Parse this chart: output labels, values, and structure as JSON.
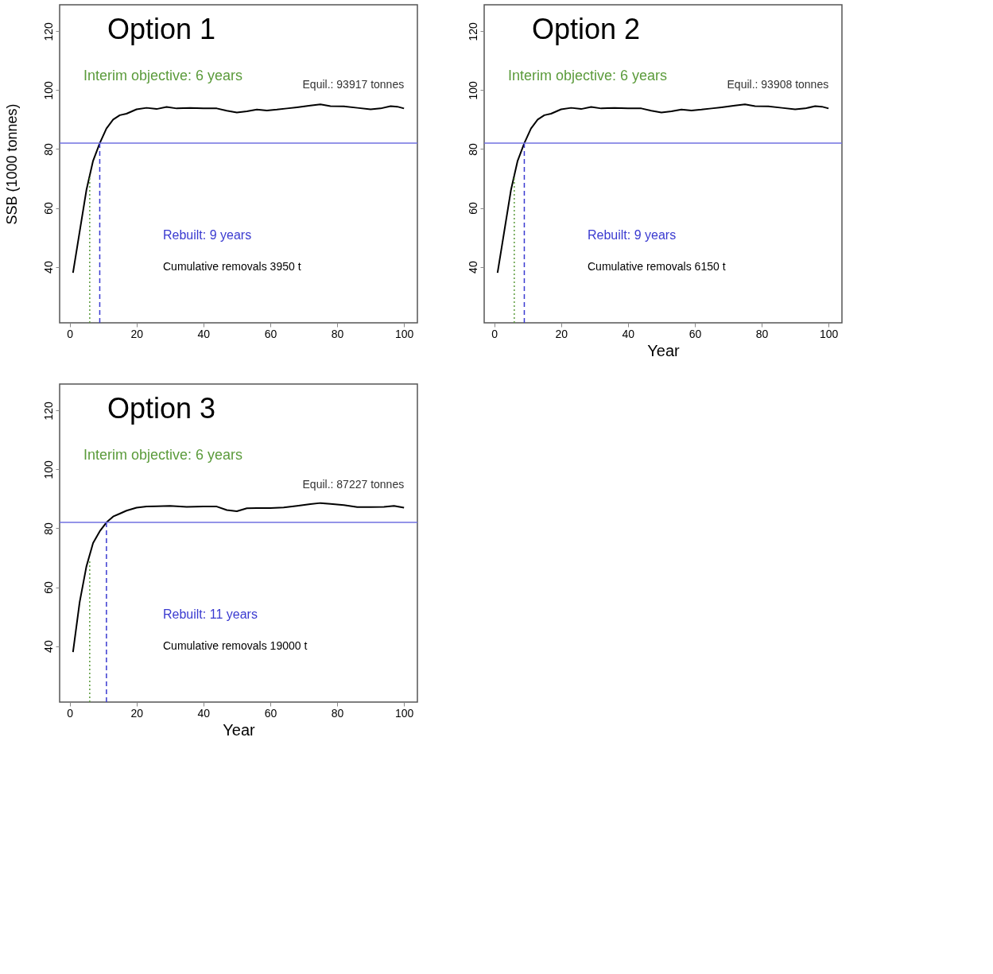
{
  "chart_data": [
    {
      "type": "line",
      "title": "Option 1",
      "ylabel": "SSB (1000 tonnes)",
      "xlim": [
        -3,
        104
      ],
      "ylim": [
        21,
        129
      ],
      "xticks": [
        0,
        20,
        40,
        60,
        80,
        100
      ],
      "yticks": [
        40,
        60,
        80,
        100,
        120
      ],
      "grid": false,
      "series": [
        {
          "name": "Equil.: 93917 tonnes",
          "color": "#000000",
          "line_style": "solid",
          "x": [
            1,
            3,
            5,
            7,
            9,
            11,
            13,
            15,
            17,
            20,
            23,
            26,
            29,
            32,
            36,
            40,
            44,
            47,
            50,
            53,
            56,
            59,
            62,
            65,
            68,
            72,
            75,
            78,
            82,
            86,
            90,
            93,
            96,
            98,
            100
          ],
          "values": [
            38,
            52,
            66,
            76,
            82,
            87,
            90,
            91.5,
            92,
            93.5,
            94,
            93.6,
            94.3,
            93.8,
            94,
            93.8,
            93.8,
            93,
            92.4,
            92.8,
            93.4,
            93.1,
            93.4,
            93.8,
            94.2,
            94.8,
            95.2,
            94.6,
            94.5,
            94,
            93.5,
            93.8,
            94.6,
            94.4,
            93.8
          ]
        },
        {
          "name": "Interim objective: 6 years",
          "color": "#5b9b3b",
          "line_style": "dotted",
          "x": [
            6,
            6
          ],
          "values": [
            21,
            71
          ]
        },
        {
          "name": "Rebuilt: 9 years",
          "color": "#3a3ad0",
          "line_style": "dashed",
          "x": [
            9,
            9
          ],
          "values": [
            21,
            82
          ]
        }
      ],
      "ref_lines": [
        {
          "axis": "y",
          "value": 82,
          "color": "#7070e0"
        }
      ],
      "annotations": [
        "Cumulative removals 3950 t"
      ]
    },
    {
      "type": "line",
      "title": "Option 2",
      "xlabel": "Year",
      "xlim": [
        -3,
        104
      ],
      "ylim": [
        21,
        129
      ],
      "xticks": [
        0,
        20,
        40,
        60,
        80,
        100
      ],
      "yticks": [
        40,
        60,
        80,
        100,
        120
      ],
      "grid": false,
      "series": [
        {
          "name": "Equil.: 93908 tonnes",
          "color": "#000000",
          "line_style": "solid",
          "x": [
            1,
            3,
            5,
            7,
            9,
            11,
            13,
            15,
            17,
            20,
            23,
            26,
            29,
            32,
            36,
            40,
            44,
            47,
            50,
            53,
            56,
            59,
            62,
            65,
            68,
            72,
            75,
            78,
            82,
            86,
            90,
            93,
            96,
            98,
            100
          ],
          "values": [
            38,
            52,
            66,
            76,
            82,
            87,
            90,
            91.5,
            92,
            93.5,
            94,
            93.6,
            94.3,
            93.8,
            94,
            93.8,
            93.8,
            93,
            92.4,
            92.8,
            93.4,
            93.1,
            93.4,
            93.8,
            94.2,
            94.8,
            95.2,
            94.6,
            94.5,
            94,
            93.5,
            93.8,
            94.6,
            94.4,
            93.8
          ]
        },
        {
          "name": "Interim objective: 6 years",
          "color": "#5b9b3b",
          "line_style": "dotted",
          "x": [
            6,
            6
          ],
          "values": [
            21,
            71
          ]
        },
        {
          "name": "Rebuilt: 9 years",
          "color": "#3a3ad0",
          "line_style": "dashed",
          "x": [
            9,
            9
          ],
          "values": [
            21,
            82
          ]
        }
      ],
      "ref_lines": [
        {
          "axis": "y",
          "value": 82,
          "color": "#7070e0"
        }
      ],
      "annotations": [
        "Cumulative removals 6150 t"
      ]
    },
    {
      "type": "line",
      "title": "Option 3",
      "xlabel": "Year",
      "xlim": [
        -3,
        104
      ],
      "ylim": [
        21,
        129
      ],
      "xticks": [
        0,
        20,
        40,
        60,
        80,
        100
      ],
      "yticks": [
        40,
        60,
        80,
        100,
        120
      ],
      "grid": false,
      "series": [
        {
          "name": "Equil.: 87227 tonnes",
          "color": "#000000",
          "line_style": "solid",
          "x": [
            1,
            3,
            5,
            7,
            9,
            11,
            13,
            15,
            17,
            20,
            23,
            26,
            30,
            35,
            40,
            44,
            47,
            50,
            53,
            56,
            60,
            64,
            68,
            72,
            75,
            78,
            82,
            86,
            90,
            94,
            97,
            100
          ],
          "values": [
            38,
            55,
            67,
            75,
            79,
            82,
            84,
            85,
            86,
            87,
            87.4,
            87.5,
            87.6,
            87.3,
            87.4,
            87.4,
            86.2,
            85.8,
            86.8,
            86.9,
            86.9,
            87.1,
            87.6,
            88.2,
            88.6,
            88.3,
            87.9,
            87.2,
            87.2,
            87.3,
            87.6,
            87
          ]
        },
        {
          "name": "Interim objective: 6 years",
          "color": "#5b9b3b",
          "line_style": "dotted",
          "x": [
            6,
            6
          ],
          "values": [
            21,
            69
          ]
        },
        {
          "name": "Rebuilt: 11 years",
          "color": "#3a3ad0",
          "line_style": "dashed",
          "x": [
            11,
            11
          ],
          "values": [
            21,
            82
          ]
        }
      ],
      "ref_lines": [
        {
          "axis": "y",
          "value": 82,
          "color": "#7070e0"
        }
      ],
      "annotations": [
        "Cumulative removals 19000 t"
      ]
    }
  ]
}
